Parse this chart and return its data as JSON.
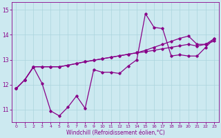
{
  "xlabel": "Windchill (Refroidissement éolien,°C)",
  "xlim_min": -0.5,
  "xlim_max": 23.5,
  "ylim_min": 10.5,
  "ylim_max": 15.3,
  "xticks": [
    0,
    1,
    2,
    3,
    4,
    5,
    6,
    7,
    8,
    9,
    10,
    11,
    12,
    13,
    14,
    15,
    16,
    17,
    18,
    19,
    20,
    21,
    22,
    23
  ],
  "yticks": [
    11,
    12,
    13,
    14,
    15
  ],
  "background_color": "#cce9f0",
  "grid_color": "#aad4dc",
  "line_color": "#880088",
  "line1_x": [
    0,
    1,
    2,
    3,
    4,
    5,
    6,
    7,
    8,
    9,
    10,
    11,
    12,
    13,
    14,
    15,
    16,
    17,
    18,
    19,
    20,
    21,
    22,
    23
  ],
  "line1_y": [
    11.85,
    12.2,
    12.7,
    12.05,
    10.95,
    10.75,
    11.1,
    11.55,
    11.05,
    12.6,
    12.5,
    12.5,
    12.45,
    12.75,
    13.0,
    14.85,
    14.3,
    14.25,
    13.15,
    13.2,
    13.15,
    13.15,
    13.5,
    13.85
  ],
  "line2_x": [
    0,
    1,
    2,
    3,
    4,
    5,
    6,
    7,
    8,
    9,
    10,
    11,
    12,
    13,
    14,
    15,
    16,
    17,
    18,
    19,
    20,
    21,
    22,
    23
  ],
  "line2_y": [
    11.85,
    12.2,
    12.72,
    12.72,
    12.72,
    12.72,
    12.78,
    12.85,
    12.92,
    12.98,
    13.04,
    13.1,
    13.16,
    13.22,
    13.28,
    13.32,
    13.38,
    13.44,
    13.5,
    13.56,
    13.62,
    13.55,
    13.62,
    13.75
  ],
  "line3_x": [
    0,
    1,
    2,
    3,
    4,
    5,
    6,
    7,
    8,
    9,
    10,
    11,
    12,
    13,
    14,
    15,
    16,
    17,
    18,
    19,
    20,
    21,
    22,
    23
  ],
  "line3_y": [
    11.85,
    12.2,
    12.72,
    12.72,
    12.72,
    12.72,
    12.78,
    12.85,
    12.92,
    12.98,
    13.04,
    13.1,
    13.16,
    13.22,
    13.28,
    13.38,
    13.5,
    13.62,
    13.74,
    13.86,
    13.95,
    13.62,
    13.62,
    13.85
  ],
  "tick_fontsize": 5.5,
  "xlabel_fontsize": 5.5
}
